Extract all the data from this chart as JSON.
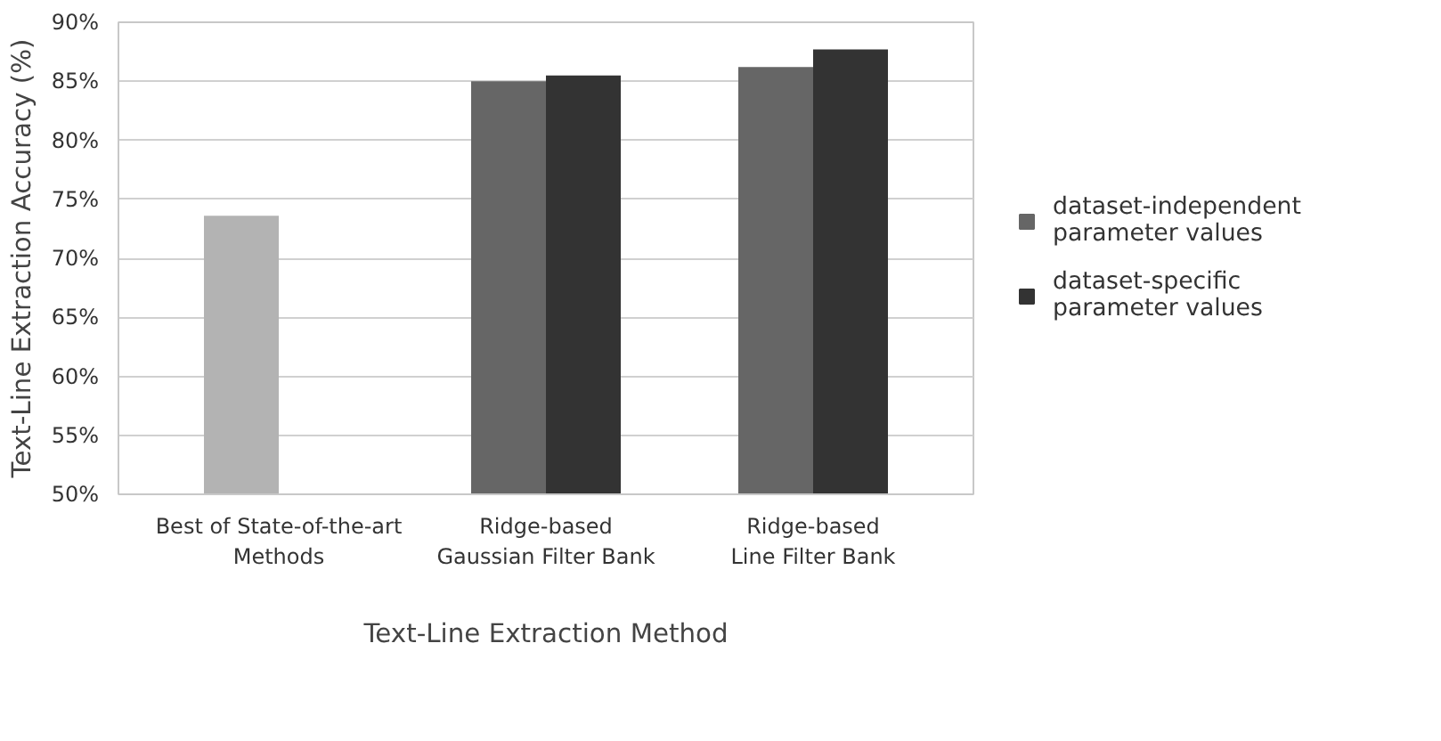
{
  "chart_data": {
    "type": "bar",
    "xlabel": "Text-Line Extraction Method",
    "ylabel": "Text-Line Extraction Accuracy (%)",
    "categories": [
      "Best of State-of-the-art Methods",
      "Ridge-based Gaussian Filter Bank",
      "Ridge-based Line Filter Bank"
    ],
    "series": [
      {
        "name": "dataset-independent parameter values",
        "color": "#666666",
        "colors": [
          "#b3b3b3",
          "#666666",
          "#666666"
        ],
        "values": [
          73.6,
          85.0,
          86.2
        ]
      },
      {
        "name": "dataset-specific parameter values",
        "color": "#333333",
        "values": [
          null,
          85.5,
          87.7
        ]
      }
    ],
    "ylim": [
      50,
      90
    ],
    "yticks": [
      {
        "value": 50,
        "label": "50%"
      },
      {
        "value": 55,
        "label": "55%"
      },
      {
        "value": 60,
        "label": "60%"
      },
      {
        "value": 65,
        "label": "65%"
      },
      {
        "value": 70,
        "label": "70%"
      },
      {
        "value": 75,
        "label": "75%"
      },
      {
        "value": 80,
        "label": "80%"
      },
      {
        "value": 85,
        "label": "85%"
      },
      {
        "value": 90,
        "label": "90%"
      }
    ],
    "grid": "y",
    "legend": "right"
  }
}
